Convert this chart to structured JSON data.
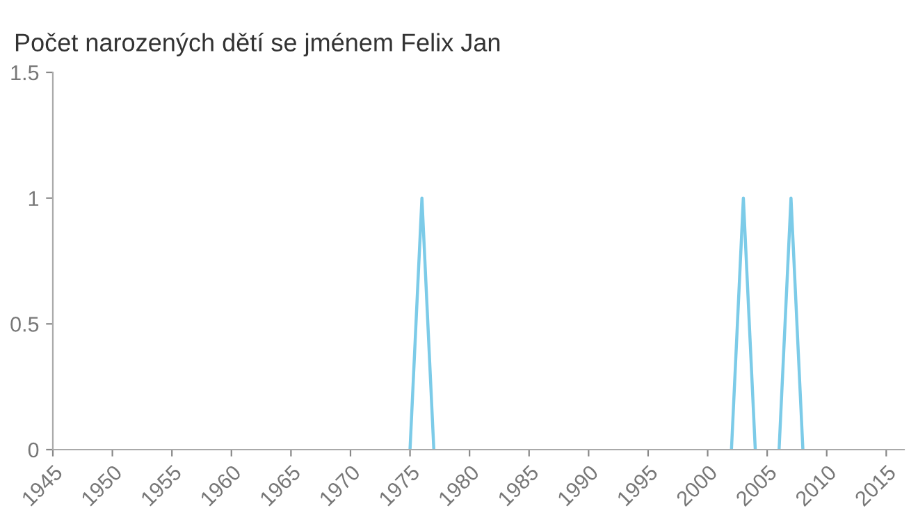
{
  "chart_data": {
    "type": "line",
    "title": "Počet narozených dětí se jménem Felix Jan",
    "x": [
      1975,
      1976,
      1977,
      1990,
      2002,
      2003,
      2004,
      2005,
      2006,
      2007,
      2008
    ],
    "series": [
      {
        "color": "#7ccbe8",
        "values": [
          0,
          1,
          0,
          null,
          0,
          1,
          0,
          null,
          0,
          1,
          0
        ]
      }
    ],
    "xlim": [
      1945,
      2016.5
    ],
    "xticks": [
      1945,
      1950,
      1955,
      1960,
      1965,
      1970,
      1975,
      1980,
      1985,
      1990,
      1995,
      2000,
      2005,
      2010,
      2015
    ],
    "ylim": [
      0,
      1.5
    ],
    "yticks": [
      0,
      0.5,
      1,
      1.5
    ],
    "grid": false,
    "legend": false
  }
}
